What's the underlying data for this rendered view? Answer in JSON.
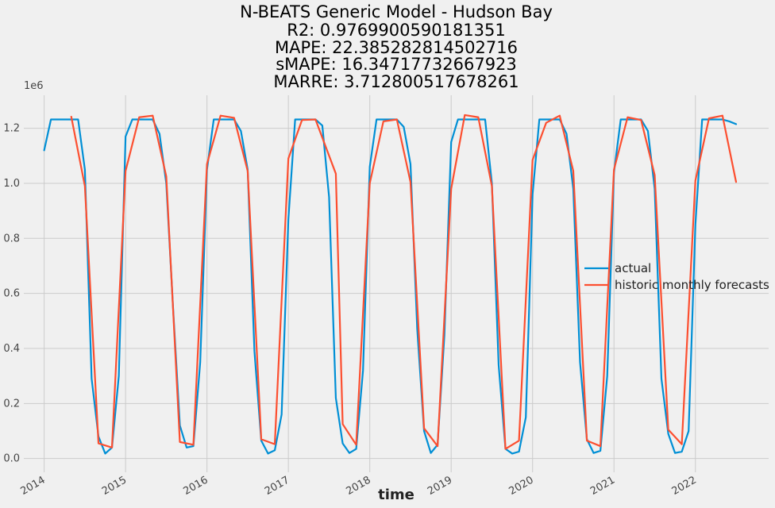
{
  "chart_data": {
    "type": "line",
    "title_lines": [
      "N-BEATS Generic Model - Hudson Bay",
      "R2: 0.9769900590181351",
      "MAPE: 22.385282814502716",
      "sMAPE: 16.34717732667923",
      "MARRE: 3.712800517678261"
    ],
    "xlabel": "time",
    "ylabel": "",
    "y_exponent_label": "1e6",
    "y_scale": 1000000,
    "ylim": [
      -0.05,
      1.32
    ],
    "xlim": [
      2013.75,
      2022.9
    ],
    "y_ticks": [
      0.0,
      0.2,
      0.4,
      0.6,
      0.8,
      1.0,
      1.2
    ],
    "y_tick_labels": [
      "0.0",
      "0.2",
      "0.4",
      "0.6",
      "0.8",
      "1.0",
      "1.2"
    ],
    "x_ticks": [
      2014,
      2015,
      2016,
      2017,
      2018,
      2019,
      2020,
      2021,
      2022
    ],
    "x_tick_labels": [
      "2014",
      "2015",
      "2016",
      "2017",
      "2018",
      "2019",
      "2020",
      "2021",
      "2022"
    ],
    "grid": true,
    "legend": {
      "position": "center-right",
      "entries": [
        "actual",
        "historic monthly forecasts"
      ]
    },
    "series": [
      {
        "name": "actual",
        "color": "#008fd5",
        "x": [
          2014.0,
          2014.083,
          2014.167,
          2014.25,
          2014.333,
          2014.417,
          2014.5,
          2014.583,
          2014.667,
          2014.75,
          2014.833,
          2014.917,
          2015.0,
          2015.083,
          2015.167,
          2015.25,
          2015.333,
          2015.417,
          2015.5,
          2015.583,
          2015.667,
          2015.75,
          2015.833,
          2015.917,
          2016.0,
          2016.083,
          2016.167,
          2016.25,
          2016.333,
          2016.417,
          2016.5,
          2016.583,
          2016.667,
          2016.75,
          2016.833,
          2016.917,
          2017.0,
          2017.083,
          2017.167,
          2017.25,
          2017.333,
          2017.417,
          2017.5,
          2017.583,
          2017.667,
          2017.75,
          2017.833,
          2017.917,
          2018.0,
          2018.083,
          2018.167,
          2018.25,
          2018.333,
          2018.417,
          2018.5,
          2018.583,
          2018.667,
          2018.75,
          2018.833,
          2018.917,
          2019.0,
          2019.083,
          2019.167,
          2019.25,
          2019.333,
          2019.417,
          2019.5,
          2019.583,
          2019.667,
          2019.75,
          2019.833,
          2019.917,
          2020.0,
          2020.083,
          2020.167,
          2020.25,
          2020.333,
          2020.417,
          2020.5,
          2020.583,
          2020.667,
          2020.75,
          2020.833,
          2020.917,
          2021.0,
          2021.083,
          2021.167,
          2021.25,
          2021.333,
          2021.417,
          2021.5,
          2021.583,
          2021.667,
          2021.75,
          2021.833,
          2021.917,
          2022.0,
          2022.083,
          2022.167,
          2022.25,
          2022.333,
          2022.417,
          2022.5
        ],
        "values": [
          1.12,
          1.232,
          1.232,
          1.232,
          1.232,
          1.232,
          1.05,
          0.29,
          0.08,
          0.018,
          0.04,
          0.3,
          1.17,
          1.232,
          1.232,
          1.232,
          1.232,
          1.18,
          1.0,
          0.55,
          0.12,
          0.04,
          0.045,
          0.35,
          1.05,
          1.232,
          1.232,
          1.232,
          1.232,
          1.19,
          1.05,
          0.39,
          0.065,
          0.018,
          0.03,
          0.16,
          0.87,
          1.232,
          1.232,
          1.232,
          1.232,
          1.21,
          0.95,
          0.22,
          0.055,
          0.02,
          0.035,
          0.32,
          1.06,
          1.232,
          1.232,
          1.232,
          1.232,
          1.205,
          1.07,
          0.47,
          0.1,
          0.02,
          0.05,
          0.45,
          1.15,
          1.232,
          1.232,
          1.232,
          1.232,
          1.232,
          1.0,
          0.34,
          0.035,
          0.018,
          0.025,
          0.15,
          0.96,
          1.232,
          1.232,
          1.232,
          1.232,
          1.18,
          0.98,
          0.35,
          0.07,
          0.02,
          0.028,
          0.3,
          1.04,
          1.232,
          1.232,
          1.232,
          1.232,
          1.19,
          0.98,
          0.29,
          0.09,
          0.02,
          0.025,
          0.1,
          0.85,
          1.232,
          1.232,
          1.232,
          1.232,
          1.225,
          1.215
        ]
      },
      {
        "name": "historic monthly forecasts",
        "color": "#fc4f30",
        "x": [
          2014.333,
          2014.5,
          2014.667,
          2014.833,
          2015.0,
          2015.167,
          2015.333,
          2015.5,
          2015.667,
          2015.833,
          2016.0,
          2016.167,
          2016.333,
          2016.5,
          2016.667,
          2016.833,
          2017.0,
          2017.167,
          2017.333,
          2017.583,
          2017.667,
          2017.833,
          2018.0,
          2018.167,
          2018.333,
          2018.5,
          2018.667,
          2018.833,
          2019.0,
          2019.167,
          2019.333,
          2019.5,
          2019.667,
          2019.833,
          2020.0,
          2020.167,
          2020.333,
          2020.5,
          2020.667,
          2020.833,
          2021.0,
          2021.167,
          2021.333,
          2021.5,
          2021.667,
          2021.833,
          2022.0,
          2022.167,
          2022.333,
          2022.5
        ],
        "values": [
          1.242,
          0.99,
          0.055,
          0.04,
          1.045,
          1.24,
          1.246,
          1.025,
          0.06,
          0.05,
          1.07,
          1.246,
          1.238,
          1.045,
          0.07,
          0.052,
          1.09,
          1.23,
          1.232,
          1.035,
          0.125,
          0.05,
          1.0,
          1.225,
          1.232,
          1.005,
          0.11,
          0.045,
          0.98,
          1.248,
          1.24,
          0.99,
          0.035,
          0.065,
          1.085,
          1.22,
          1.246,
          1.045,
          0.065,
          0.045,
          1.05,
          1.24,
          1.23,
          1.03,
          0.105,
          0.052,
          1.01,
          1.236,
          1.246,
          1.005
        ]
      }
    ]
  }
}
